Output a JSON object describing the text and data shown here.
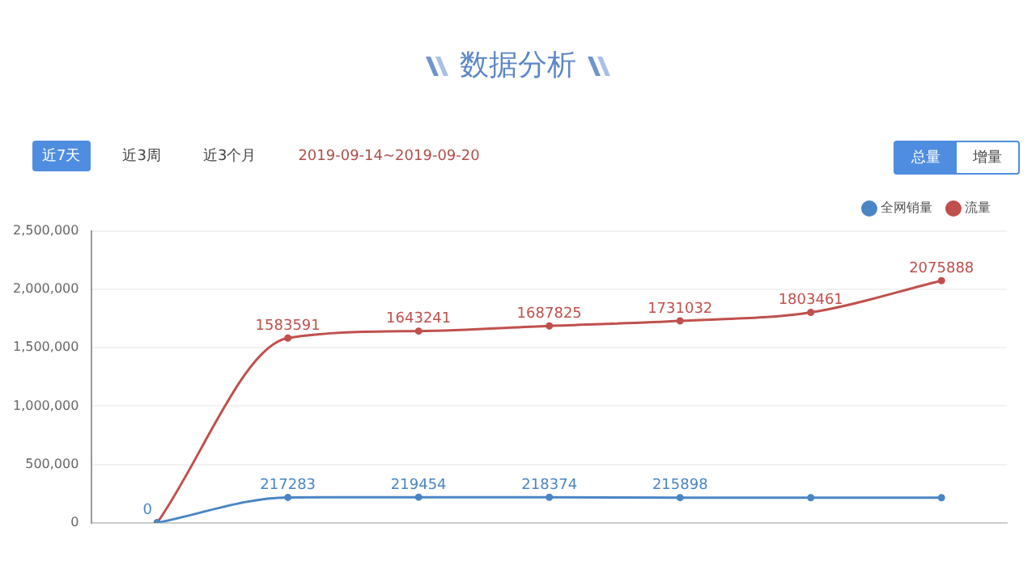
{
  "chart_data": {
    "type": "line",
    "title": "数据分析",
    "annotations": [
      "近7天",
      "近3周",
      "近3个月",
      "2019-09-14~2019-09-20",
      "总量",
      "增量"
    ],
    "categories": [
      null,
      null,
      null,
      null,
      null,
      null,
      null
    ],
    "series": [
      {
        "name": "全网销量",
        "color": "#4a86c5",
        "values": [
          0,
          217283,
          219454,
          218374,
          215898,
          215000,
          215000
        ],
        "value_labels": [
          "0",
          "217283",
          "219454",
          "218374",
          "215898",
          null,
          null
        ]
      },
      {
        "name": "流量",
        "color": "#c0504d",
        "values": [
          0,
          1583591,
          1643241,
          1687825,
          1731032,
          1803461,
          2075888
        ],
        "value_labels": [
          null,
          "1583591",
          "1643241",
          "1687825",
          "1731032",
          "1803461",
          "2075888"
        ]
      }
    ],
    "ylim": [
      0,
      2500000
    ],
    "yticks": [
      {
        "value": 0,
        "label": "0"
      },
      {
        "value": 500000,
        "label": "500,000"
      },
      {
        "value": 1000000,
        "label": "1,000,000"
      },
      {
        "value": 1500000,
        "label": "1,500,000"
      },
      {
        "value": 2000000,
        "label": "2,000,000"
      },
      {
        "value": 2500000,
        "label": "2,500,000"
      }
    ],
    "grid": "y",
    "legend": "top right",
    "marker": "circle",
    "line_style": "solid"
  }
}
